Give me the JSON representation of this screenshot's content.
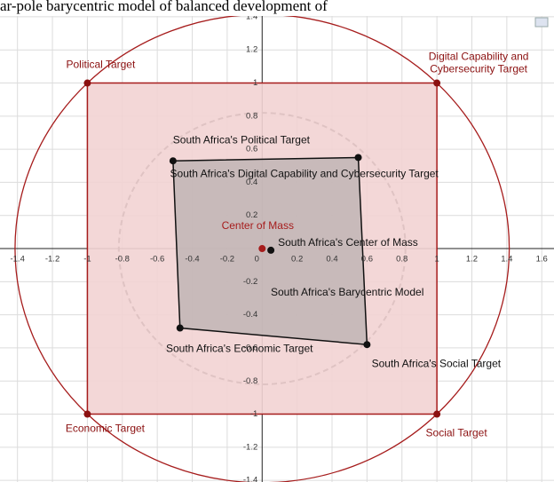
{
  "chart_data": {
    "type": "scatter",
    "title": "ar-pole barycentric model of balanced development of",
    "xlim": [
      -1.5,
      1.67
    ],
    "ylim": [
      -1.41,
      1.405
    ],
    "xticks": [
      -1.4,
      -1.2,
      -1,
      -0.8,
      -0.6,
      -0.4,
      -0.2,
      0,
      0.2,
      0.4,
      0.6,
      0.8,
      1,
      1.2,
      1.4,
      1.6
    ],
    "yticks": [
      1.4,
      1.2,
      1,
      0.8,
      0.6,
      0.4,
      0.2,
      -0.2,
      -0.4,
      -0.6,
      -0.8,
      -1,
      -1.2,
      -1.4
    ],
    "grid": true,
    "series": [
      {
        "labels": [
          "Political Target",
          "Digital Capability and Cybersecurity Target",
          "Social Target",
          "Economic Target"
        ],
        "x": [
          -1,
          1,
          1,
          -1
        ],
        "y": [
          1,
          1,
          -1,
          -1
        ],
        "color": "#a61c1c",
        "fill": "#f2d3d3"
      },
      {
        "labels": [
          "South Africa's Political Target",
          "South Africa's Digital Capability and Cybersecurity Target",
          "South Africa's Social Target",
          "South Africa's Economic Target"
        ],
        "x": [
          -0.51,
          0.55,
          0.6,
          -0.47
        ],
        "y": [
          0.53,
          0.55,
          -0.58,
          -0.48
        ],
        "color": "#111111",
        "fill": "#b9b0b0"
      }
    ],
    "centers": {
      "labels": [
        "Center of Mass",
        "South Africa's Center of Mass"
      ],
      "x": [
        0,
        0.05
      ],
      "y": [
        0,
        -0.01
      ],
      "colors": [
        "#a61c1c",
        "#111111"
      ]
    },
    "circles": [
      {
        "r": 1.414,
        "color": "#a61c1c",
        "dashed": false
      },
      {
        "r": 0.82,
        "color": "#333333",
        "dashed": true
      }
    ],
    "annotation": "South Africa's Barycentric Model"
  }
}
